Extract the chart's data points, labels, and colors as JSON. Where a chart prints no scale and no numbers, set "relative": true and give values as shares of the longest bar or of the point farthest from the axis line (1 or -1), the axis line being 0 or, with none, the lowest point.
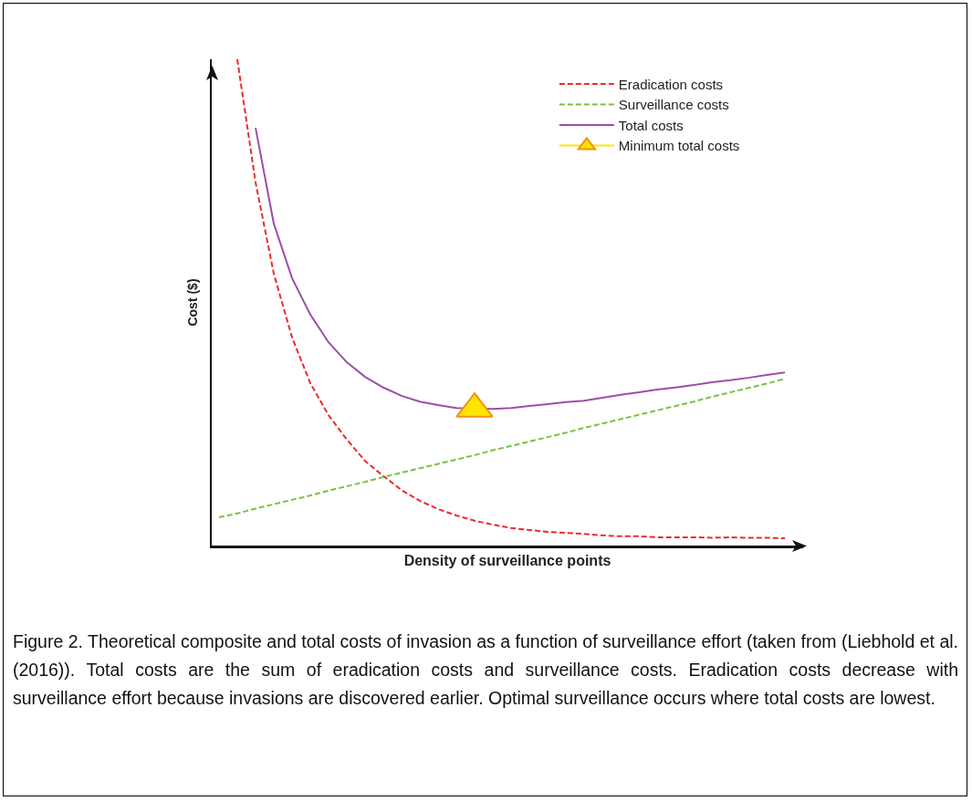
{
  "chart_data": {
    "type": "line",
    "relative": true,
    "xlabel": "Density of surveillance points",
    "ylabel": "Cost ($)",
    "legend": "top right",
    "categories": [
      null,
      null,
      null,
      null,
      null,
      null,
      null,
      null,
      null,
      null,
      null,
      null,
      null,
      null,
      null,
      null,
      null,
      null,
      null,
      null,
      null,
      null,
      null,
      null,
      null,
      null,
      null,
      null,
      null,
      null,
      null,
      null
    ],
    "series": [
      {
        "name": "Eradication costs",
        "color": "#ee2b2b",
        "line_style": "dashed",
        "values": [
          null,
          1.0,
          0.747,
          0.559,
          0.428,
          0.334,
          0.268,
          0.218,
          0.174,
          0.143,
          0.114,
          0.092,
          0.075,
          0.062,
          0.051,
          0.043,
          0.036,
          0.032,
          0.028,
          0.026,
          0.024,
          0.021,
          0.019,
          0.019,
          0.017,
          0.017,
          0.017,
          0.016,
          0.017,
          0.016,
          0.016,
          0.015
        ]
      },
      {
        "name": "Surveillance costs",
        "color": "#7ac143",
        "line_style": "dashed",
        "values": [
          0.058,
          0.066,
          0.076,
          0.085,
          0.094,
          0.103,
          0.113,
          0.122,
          0.131,
          0.141,
          0.15,
          0.159,
          0.168,
          0.177,
          0.186,
          0.196,
          0.205,
          0.214,
          0.223,
          0.232,
          0.242,
          0.251,
          0.26,
          0.269,
          0.278,
          0.287,
          0.296,
          0.306,
          0.315,
          0.324,
          0.333,
          0.343
        ]
      },
      {
        "name": "Total costs",
        "color": "#9b4fa6",
        "line_style": "solid",
        "values": [
          null,
          null,
          0.859,
          0.662,
          0.55,
          0.475,
          0.418,
          0.377,
          0.347,
          0.325,
          0.308,
          0.296,
          0.289,
          0.283,
          null,
          0.281,
          0.283,
          0.287,
          0.291,
          0.295,
          0.298,
          0.304,
          0.31,
          0.315,
          0.321,
          0.325,
          0.33,
          0.336,
          0.34,
          0.345,
          0.351,
          0.356
        ]
      },
      {
        "name": "Minimum total costs",
        "marker": "triangle",
        "color": "#ffe600",
        "values": [
          null,
          null,
          null,
          null,
          null,
          null,
          null,
          null,
          null,
          null,
          null,
          null,
          null,
          null,
          0.281,
          null,
          null,
          null,
          null,
          null,
          null,
          null,
          null,
          null,
          null,
          null,
          null,
          null,
          null,
          null,
          null,
          null
        ]
      }
    ],
    "annotations": [
      "Figure 2. Theoretical composite and total costs of invasion as a function of surveillance effort (taken from (Liebhold et al. (2016)). Total costs are the sum of eradication costs and surveillance costs. Eradication costs decrease with surveillance effort because invasions are discovered earlier. Optimal surveillance occurs where total costs are lowest."
    ]
  }
}
